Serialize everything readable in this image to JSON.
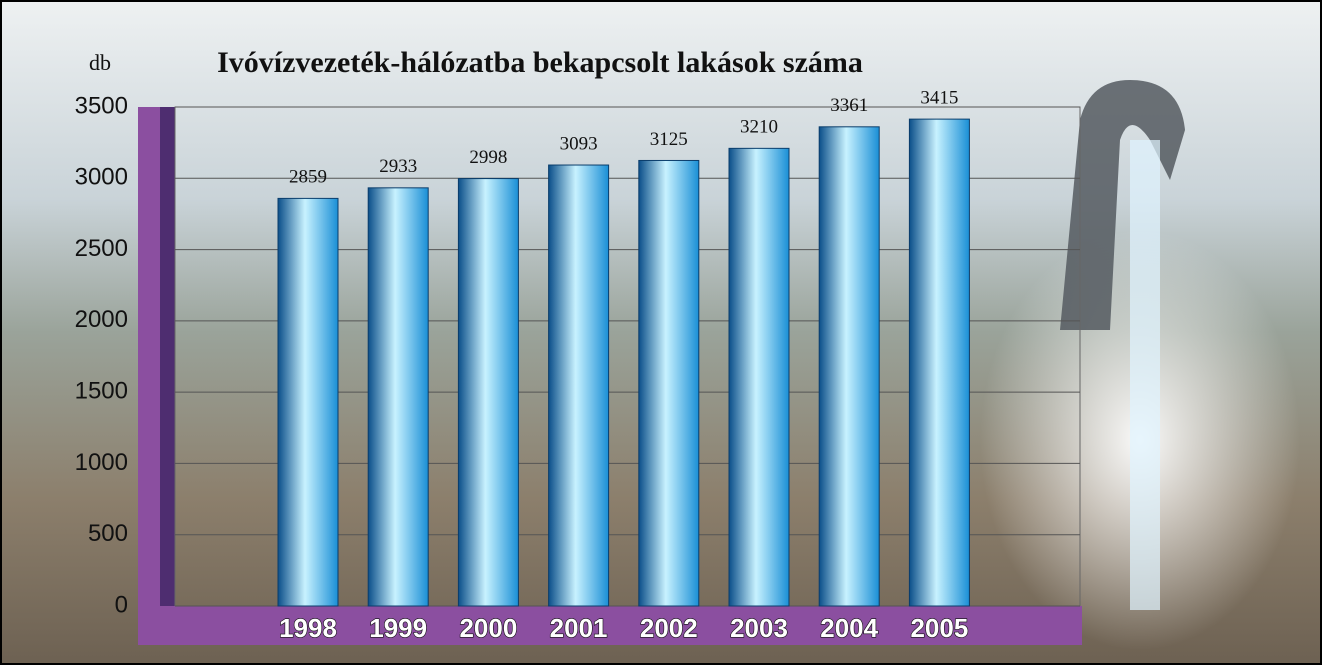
{
  "chart_data": {
    "type": "bar",
    "title": "Ivóvízvezeték-hálózatba bekapcsolt lakások száma",
    "y_label": "db",
    "categories": [
      "1998",
      "1999",
      "2000",
      "2001",
      "2002",
      "2003",
      "2004",
      "2005"
    ],
    "values": [
      2859,
      2933,
      2998,
      3093,
      3125,
      3210,
      3361,
      3415
    ],
    "color": "#1a8fd6",
    "ylim": [
      0,
      3500
    ],
    "yticks": [
      0,
      500,
      1000,
      1500,
      2000,
      2500,
      3000,
      3500
    ],
    "grid": true
  }
}
